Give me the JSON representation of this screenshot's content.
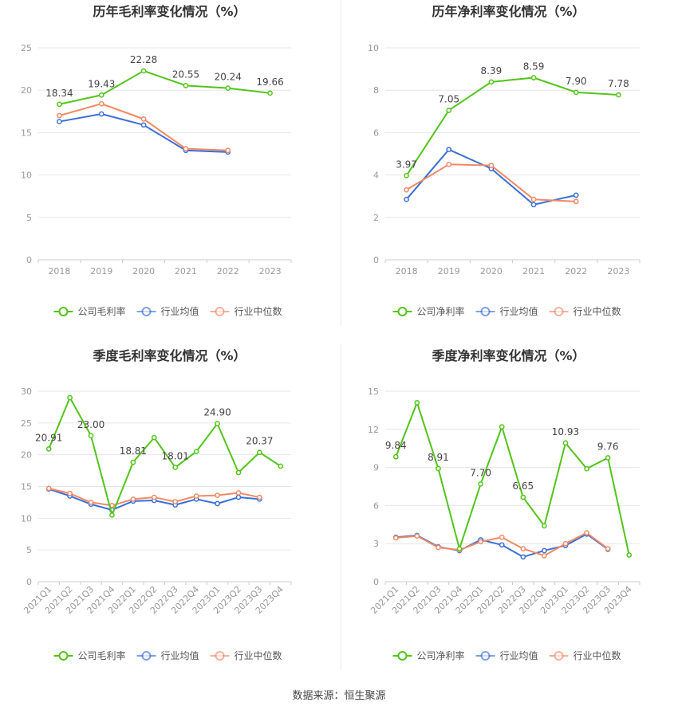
{
  "colors": {
    "company": "#52c41a",
    "avg": "#3a6fd8",
    "median": "#f08a65",
    "grid": "#e6e6e6",
    "axis": "#999999",
    "title": "#333333"
  },
  "legend": {
    "company_gross": "公司毛利率",
    "company_net": "公司净利率",
    "avg": "行业均值",
    "median": "行业中位数"
  },
  "footer": "数据来源：恒生聚源",
  "chart_data": [
    {
      "id": "annual-gross",
      "type": "line",
      "title": "历年毛利率变化情况（%）",
      "categories": [
        "2018",
        "2019",
        "2020",
        "2021",
        "2022",
        "2023"
      ],
      "ylim": [
        0,
        25
      ],
      "yticks": [
        0,
        5,
        10,
        15,
        20,
        25
      ],
      "series": [
        {
          "name": "公司毛利率",
          "values": [
            18.34,
            19.43,
            22.28,
            20.55,
            20.24,
            19.66
          ]
        },
        {
          "name": "行业均值",
          "values": [
            16.3,
            17.2,
            15.9,
            12.9,
            12.7,
            null
          ]
        },
        {
          "name": "行业中位数",
          "values": [
            17.0,
            18.4,
            16.6,
            13.1,
            12.9,
            null
          ]
        }
      ],
      "labels": [
        "18.34",
        "19.43",
        "22.28",
        "20.55",
        "20.24",
        "19.66"
      ]
    },
    {
      "id": "annual-net",
      "type": "line",
      "title": "历年净利率变化情况（%）",
      "categories": [
        "2018",
        "2019",
        "2020",
        "2021",
        "2022",
        "2023"
      ],
      "ylim": [
        0,
        10
      ],
      "yticks": [
        0,
        2,
        4,
        6,
        8,
        10
      ],
      "series": [
        {
          "name": "公司净利率",
          "values": [
            3.97,
            7.05,
            8.39,
            8.59,
            7.9,
            7.78
          ]
        },
        {
          "name": "行业均值",
          "values": [
            2.85,
            5.2,
            4.3,
            2.6,
            3.05,
            null
          ]
        },
        {
          "name": "行业中位数",
          "values": [
            3.3,
            4.5,
            4.45,
            2.85,
            2.75,
            null
          ]
        }
      ],
      "labels": [
        "3.97",
        "7.05",
        "8.39",
        "8.59",
        "7.90",
        "7.78"
      ]
    },
    {
      "id": "quarter-gross",
      "type": "line",
      "title": "季度毛利率变化情况（%）",
      "categories": [
        "2021Q1",
        "2021Q2",
        "2021Q3",
        "2021Q4",
        "2022Q1",
        "2022Q2",
        "2022Q3",
        "2022Q4",
        "2023Q1",
        "2023Q2",
        "2023Q3",
        "2023Q4"
      ],
      "ylim": [
        0,
        30
      ],
      "yticks": [
        0,
        5,
        10,
        15,
        20,
        25,
        30
      ],
      "series": [
        {
          "name": "公司毛利率",
          "values": [
            20.91,
            29.0,
            23.0,
            10.5,
            18.81,
            22.7,
            18.01,
            20.5,
            24.9,
            17.2,
            20.37,
            18.2
          ]
        },
        {
          "name": "行业均值",
          "values": [
            14.6,
            13.5,
            12.2,
            11.3,
            12.7,
            12.8,
            12.1,
            13.0,
            12.3,
            13.3,
            13.0,
            null
          ]
        },
        {
          "name": "行业中位数",
          "values": [
            14.7,
            13.9,
            12.5,
            12.0,
            13.0,
            13.3,
            12.6,
            13.5,
            13.6,
            14.0,
            13.3,
            null
          ]
        }
      ],
      "labels": [
        "20.91",
        "",
        "23.00",
        "",
        "18.81",
        "",
        "18.01",
        "",
        "24.90",
        "",
        "20.37",
        ""
      ]
    },
    {
      "id": "quarter-net",
      "type": "line",
      "title": "季度净利率变化情况（%）",
      "categories": [
        "2021Q1",
        "2021Q2",
        "2021Q3",
        "2021Q4",
        "2022Q1",
        "2022Q2",
        "2022Q3",
        "2022Q4",
        "2023Q1",
        "2023Q2",
        "2023Q3",
        "2023Q4"
      ],
      "ylim": [
        0,
        15
      ],
      "yticks": [
        0,
        3,
        6,
        9,
        12,
        15
      ],
      "series": [
        {
          "name": "公司净利率",
          "values": [
            9.84,
            14.1,
            8.91,
            2.6,
            7.7,
            12.2,
            6.65,
            4.4,
            10.93,
            8.9,
            9.76,
            2.1
          ]
        },
        {
          "name": "行业均值",
          "values": [
            3.5,
            3.65,
            2.75,
            2.45,
            3.3,
            2.9,
            1.95,
            2.45,
            2.85,
            3.75,
            2.55,
            null
          ]
        },
        {
          "name": "行业中位数",
          "values": [
            3.45,
            3.6,
            2.7,
            2.5,
            3.15,
            3.5,
            2.6,
            2.05,
            3.0,
            3.85,
            2.6,
            null
          ]
        }
      ],
      "labels": [
        "9.84",
        "",
        "8.91",
        "",
        "7.70",
        "",
        "6.65",
        "",
        "10.93",
        "",
        "9.76",
        ""
      ]
    }
  ]
}
